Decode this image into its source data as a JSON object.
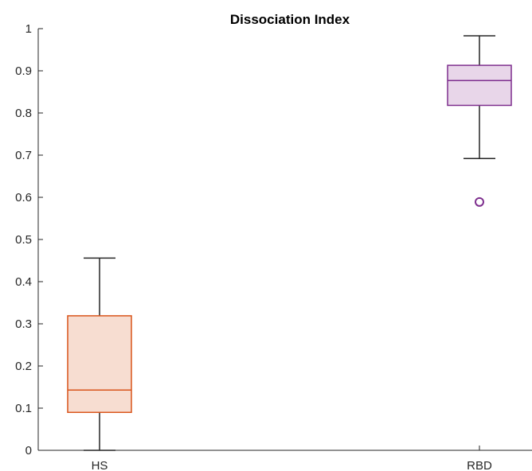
{
  "chart_data": {
    "type": "box",
    "title": "Dissociation Index",
    "xlabel": "",
    "ylabel": "",
    "ylim": [
      0,
      1
    ],
    "yticks": [
      0,
      0.1,
      0.2,
      0.3,
      0.4,
      0.5,
      0.6,
      0.7,
      0.8,
      0.9,
      1
    ],
    "ytick_labels": [
      "0",
      "0.1",
      "0.2",
      "0.3",
      "0.4",
      "0.5",
      "0.6",
      "0.7",
      "0.8",
      "0.9",
      "1"
    ],
    "categories": [
      "HS",
      "RBD"
    ],
    "grid": false,
    "boxes": [
      {
        "category": "HS",
        "whisker_low": 0.0,
        "q1": 0.09,
        "median": 0.143,
        "q3": 0.319,
        "whisker_high": 0.456,
        "outliers": [],
        "edge_color": "#D9541A",
        "fill_color": "#F7DDD1"
      },
      {
        "category": "RBD",
        "whisker_low": 0.692,
        "q1": 0.818,
        "median": 0.877,
        "q3": 0.913,
        "whisker_high": 0.983,
        "outliers": [
          0.589
        ],
        "edge_color": "#7E2F8E",
        "fill_color": "#E8D6E9"
      }
    ]
  }
}
